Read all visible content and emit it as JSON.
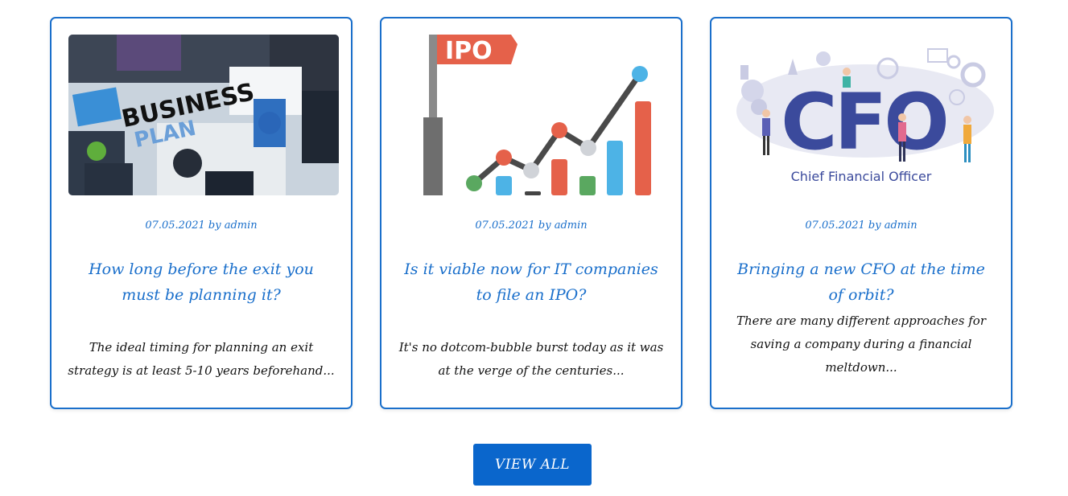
{
  "posts": [
    {
      "image_alt_text": "BUSINESS PLAN",
      "image_text_1": "BUSINESS",
      "image_text_2": "PLAN",
      "date": "07.05.2021",
      "by_word": "by",
      "author": "admin",
      "title": "How long before the exit you must be planning it?",
      "excerpt": "The ideal timing for planning an exit strategy is at least 5-10 years beforehand..."
    },
    {
      "image_text": "IPO",
      "date": "07.05.2021",
      "by_word": "by",
      "author": "admin",
      "title": "Is it viable now for IT companies to file an IPO?",
      "excerpt": "It's no dotcom-bubble burst today as it was at the verge of the centuries..."
    },
    {
      "image_text_big": "CFO",
      "image_text_sub": "Chief Financial Officer",
      "date": "07.05.2021",
      "by_word": "by",
      "author": "admin",
      "title": "Bringing a new CFO at the time of orbit?",
      "excerpt": "There are many different approaches for saving a company during a financial meltdown..."
    }
  ],
  "view_all_label": "VIEW ALL",
  "colors": {
    "accent": "#1a6fcb",
    "button": "#0a66cc",
    "text": "#111111"
  }
}
